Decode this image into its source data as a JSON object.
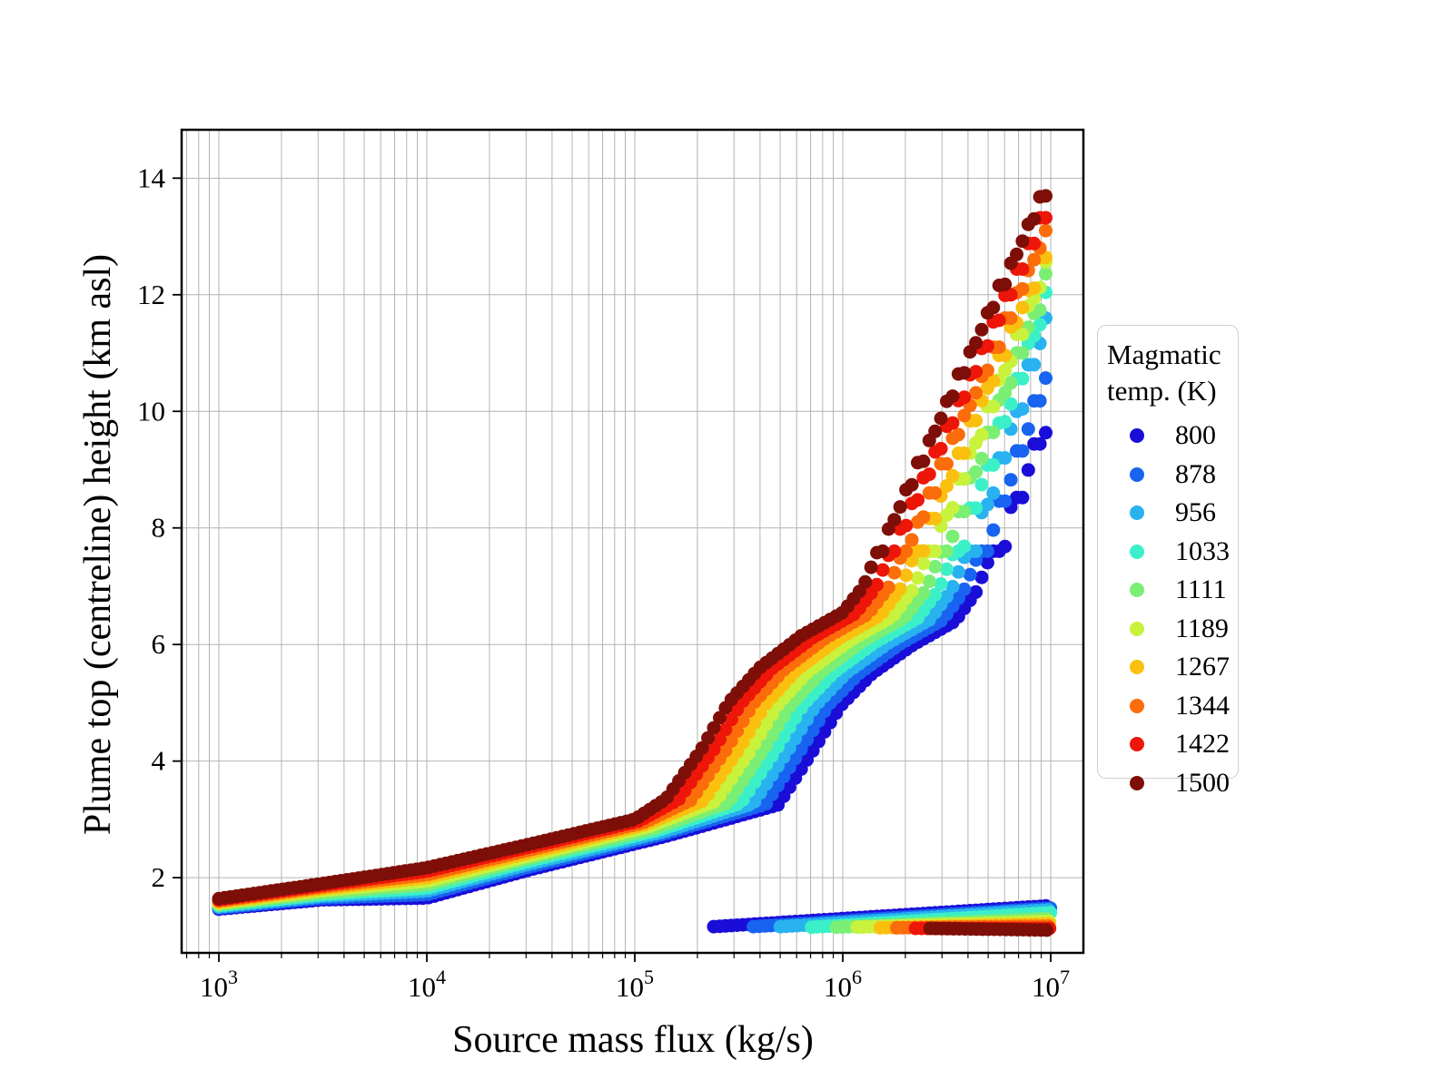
{
  "chart_data": {
    "type": "scatter",
    "title": "",
    "xlabel": "Source mass flux (kg/s)",
    "ylabel": "Plume top (centreline) height (km asl)",
    "x_scale": "log",
    "x_range_log10": [
      2.821,
      7.157
    ],
    "x_tick_exponents": [
      3,
      4,
      5,
      6,
      7
    ],
    "x_minor_ticks": "log mantissas 2-9 each decade",
    "ylim": [
      0.71,
      14.83
    ],
    "y_ticks": [
      2,
      4,
      6,
      8,
      10,
      12,
      14
    ],
    "grid": true,
    "grid_color": "#b4b4b4",
    "legend": {
      "title_lines": [
        "Magmatic",
        "temp. (K)"
      ],
      "position": "right-outside"
    },
    "series": [
      {
        "label": "800",
        "color": "#1a0dd8",
        "main": [
          [
            3.0,
            1.46
          ],
          [
            3.5,
            1.62
          ],
          [
            4.0,
            1.65
          ],
          [
            4.5,
            2.14
          ],
          [
            5.16,
            2.72
          ],
          [
            5.69,
            3.25
          ],
          [
            5.86,
            4.2
          ],
          [
            5.99,
            4.95
          ],
          [
            6.14,
            5.5
          ],
          [
            6.34,
            6.0
          ],
          [
            6.54,
            6.4
          ],
          [
            6.64,
            6.9
          ],
          [
            6.74,
            7.8
          ],
          [
            6.87,
            9.05
          ],
          [
            7.0,
            10.3
          ]
        ],
        "collapse": [
          [
            5.38,
            1.16
          ],
          [
            7.0,
            1.52
          ]
        ]
      },
      {
        "label": "878",
        "color": "#1863ef",
        "main": [
          [
            3.0,
            1.48
          ],
          [
            3.5,
            1.65
          ],
          [
            4.0,
            1.71
          ],
          [
            4.5,
            2.19
          ],
          [
            5.14,
            2.75
          ],
          [
            5.63,
            3.26
          ],
          [
            5.8,
            4.2
          ],
          [
            5.93,
            4.96
          ],
          [
            6.08,
            5.51
          ],
          [
            6.28,
            6.02
          ],
          [
            6.48,
            6.42
          ],
          [
            6.58,
            6.91
          ],
          [
            6.68,
            7.81
          ],
          [
            6.84,
            9.45
          ],
          [
            7.0,
            11.1
          ]
        ],
        "collapse": [
          [
            5.57,
            1.16
          ],
          [
            7.0,
            1.48
          ]
        ]
      },
      {
        "label": "956",
        "color": "#28b2f0",
        "main": [
          [
            3.0,
            1.5
          ],
          [
            3.5,
            1.68
          ],
          [
            4.0,
            1.77
          ],
          [
            4.5,
            2.24
          ],
          [
            5.13,
            2.78
          ],
          [
            5.57,
            3.27
          ],
          [
            5.74,
            4.2
          ],
          [
            5.87,
            4.96
          ],
          [
            6.02,
            5.52
          ],
          [
            6.22,
            6.03
          ],
          [
            6.42,
            6.43
          ],
          [
            6.52,
            6.92
          ],
          [
            6.62,
            7.82
          ],
          [
            6.81,
            9.9
          ],
          [
            7.0,
            12.0
          ]
        ],
        "collapse": [
          [
            5.7,
            1.16
          ],
          [
            7.0,
            1.45
          ]
        ]
      },
      {
        "label": "1033",
        "color": "#3bf0c8",
        "main": [
          [
            3.0,
            1.52
          ],
          [
            3.5,
            1.71
          ],
          [
            4.0,
            1.82
          ],
          [
            4.5,
            2.29
          ],
          [
            5.11,
            2.81
          ],
          [
            5.51,
            3.28
          ],
          [
            5.68,
            4.2
          ],
          [
            5.81,
            4.97
          ],
          [
            5.96,
            5.53
          ],
          [
            6.16,
            6.05
          ],
          [
            6.36,
            6.45
          ],
          [
            6.46,
            6.93
          ],
          [
            6.56,
            7.83
          ],
          [
            6.78,
            10.1
          ],
          [
            7.0,
            12.35
          ]
        ],
        "collapse": [
          [
            5.85,
            1.15
          ],
          [
            7.0,
            1.4
          ]
        ]
      },
      {
        "label": "1111",
        "color": "#7bee74",
        "main": [
          [
            3.0,
            1.54
          ],
          [
            3.5,
            1.74
          ],
          [
            4.0,
            1.88
          ],
          [
            4.5,
            2.34
          ],
          [
            5.09,
            2.84
          ],
          [
            5.45,
            3.29
          ],
          [
            5.62,
            4.2
          ],
          [
            5.75,
            4.97
          ],
          [
            5.9,
            5.54
          ],
          [
            6.1,
            6.07
          ],
          [
            6.3,
            6.47
          ],
          [
            6.4,
            6.94
          ],
          [
            6.5,
            7.84
          ],
          [
            6.75,
            10.25
          ],
          [
            7.0,
            12.6
          ]
        ],
        "collapse": [
          [
            5.97,
            1.15
          ],
          [
            7.0,
            1.3
          ]
        ]
      },
      {
        "label": "1189",
        "color": "#c8f23c",
        "main": [
          [
            3.0,
            1.56
          ],
          [
            3.5,
            1.78
          ],
          [
            4.0,
            1.94
          ],
          [
            4.5,
            2.38
          ],
          [
            5.07,
            2.88
          ],
          [
            5.39,
            3.31
          ],
          [
            5.56,
            4.2
          ],
          [
            5.69,
            4.98
          ],
          [
            5.84,
            5.56
          ],
          [
            6.04,
            6.08
          ],
          [
            6.24,
            6.48
          ],
          [
            6.34,
            6.96
          ],
          [
            6.44,
            7.86
          ],
          [
            6.72,
            10.35
          ],
          [
            7.0,
            12.85
          ]
        ],
        "collapse": [
          [
            6.07,
            1.15
          ],
          [
            7.0,
            1.25
          ]
        ]
      },
      {
        "label": "1267",
        "color": "#fbc00f",
        "main": [
          [
            3.0,
            1.58
          ],
          [
            3.5,
            1.81
          ],
          [
            4.0,
            2.0
          ],
          [
            4.5,
            2.43
          ],
          [
            5.05,
            2.91
          ],
          [
            5.33,
            3.32
          ],
          [
            5.5,
            4.2
          ],
          [
            5.63,
            4.98
          ],
          [
            5.78,
            5.57
          ],
          [
            5.98,
            6.1
          ],
          [
            6.18,
            6.5
          ],
          [
            6.28,
            6.97
          ],
          [
            6.38,
            7.87
          ],
          [
            6.69,
            10.5
          ],
          [
            7.0,
            13.1
          ]
        ],
        "collapse": [
          [
            6.18,
            1.14
          ],
          [
            7.0,
            1.21
          ]
        ]
      },
      {
        "label": "1344",
        "color": "#fb6d0a",
        "main": [
          [
            3.0,
            1.6
          ],
          [
            3.5,
            1.84
          ],
          [
            4.0,
            2.05
          ],
          [
            4.5,
            2.48
          ],
          [
            5.04,
            2.94
          ],
          [
            5.27,
            3.33
          ],
          [
            5.44,
            4.2
          ],
          [
            5.57,
            4.99
          ],
          [
            5.72,
            5.58
          ],
          [
            5.92,
            6.12
          ],
          [
            6.12,
            6.52
          ],
          [
            6.22,
            6.98
          ],
          [
            6.32,
            7.88
          ],
          [
            6.66,
            10.65
          ],
          [
            7.0,
            13.4
          ]
        ],
        "collapse": [
          [
            6.26,
            1.14
          ],
          [
            7.0,
            1.17
          ]
        ]
      },
      {
        "label": "1422",
        "color": "#ee1509",
        "main": [
          [
            3.0,
            1.62
          ],
          [
            3.5,
            1.87
          ],
          [
            4.0,
            2.11
          ],
          [
            4.5,
            2.53
          ],
          [
            5.02,
            2.97
          ],
          [
            5.21,
            3.34
          ],
          [
            5.38,
            4.2
          ],
          [
            5.51,
            4.99
          ],
          [
            5.66,
            5.59
          ],
          [
            5.86,
            6.13
          ],
          [
            6.06,
            6.53
          ],
          [
            6.16,
            6.99
          ],
          [
            6.26,
            7.89
          ],
          [
            6.63,
            10.8
          ],
          [
            7.0,
            13.75
          ]
        ],
        "collapse": [
          [
            6.35,
            1.13
          ],
          [
            7.0,
            1.13
          ]
        ]
      },
      {
        "label": "1500",
        "color": "#7d0f08",
        "main": [
          [
            3.0,
            1.64
          ],
          [
            3.5,
            1.9
          ],
          [
            4.0,
            2.17
          ],
          [
            4.5,
            2.58
          ],
          [
            5.0,
            3.0
          ],
          [
            5.15,
            3.35
          ],
          [
            5.32,
            4.2
          ],
          [
            5.45,
            5.0
          ],
          [
            5.6,
            5.6
          ],
          [
            5.8,
            6.15
          ],
          [
            6.0,
            6.55
          ],
          [
            6.1,
            7.0
          ],
          [
            6.2,
            7.9
          ],
          [
            6.6,
            11.0
          ],
          [
            7.0,
            14.1
          ]
        ],
        "collapse": [
          [
            6.42,
            1.13
          ],
          [
            7.0,
            1.1
          ]
        ]
      }
    ]
  }
}
